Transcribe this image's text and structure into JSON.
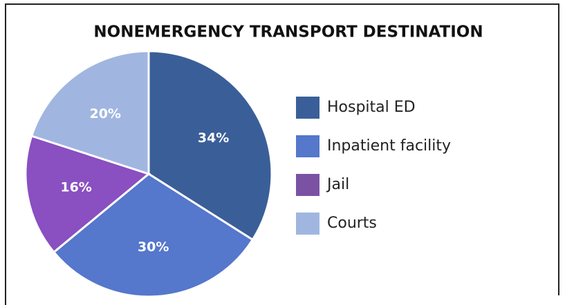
{
  "chart_data": {
    "type": "pie",
    "title": "NONEMERGENCY TRANSPORT DESTINATION",
    "categories": [
      "Hospital ED",
      "Inpatient facility",
      "Jail",
      "Courts"
    ],
    "values": [
      34,
      30,
      16,
      20
    ],
    "value_labels": [
      "34%",
      "30%",
      "16%",
      "20%"
    ],
    "colors": [
      "#3a5f98",
      "#5577cc",
      "#8a4fc0",
      "#a0b6e0"
    ],
    "legend_colors": [
      "#3a5f98",
      "#5577cc",
      "#7b52a3",
      "#a0b6e0"
    ],
    "legend": "right"
  }
}
